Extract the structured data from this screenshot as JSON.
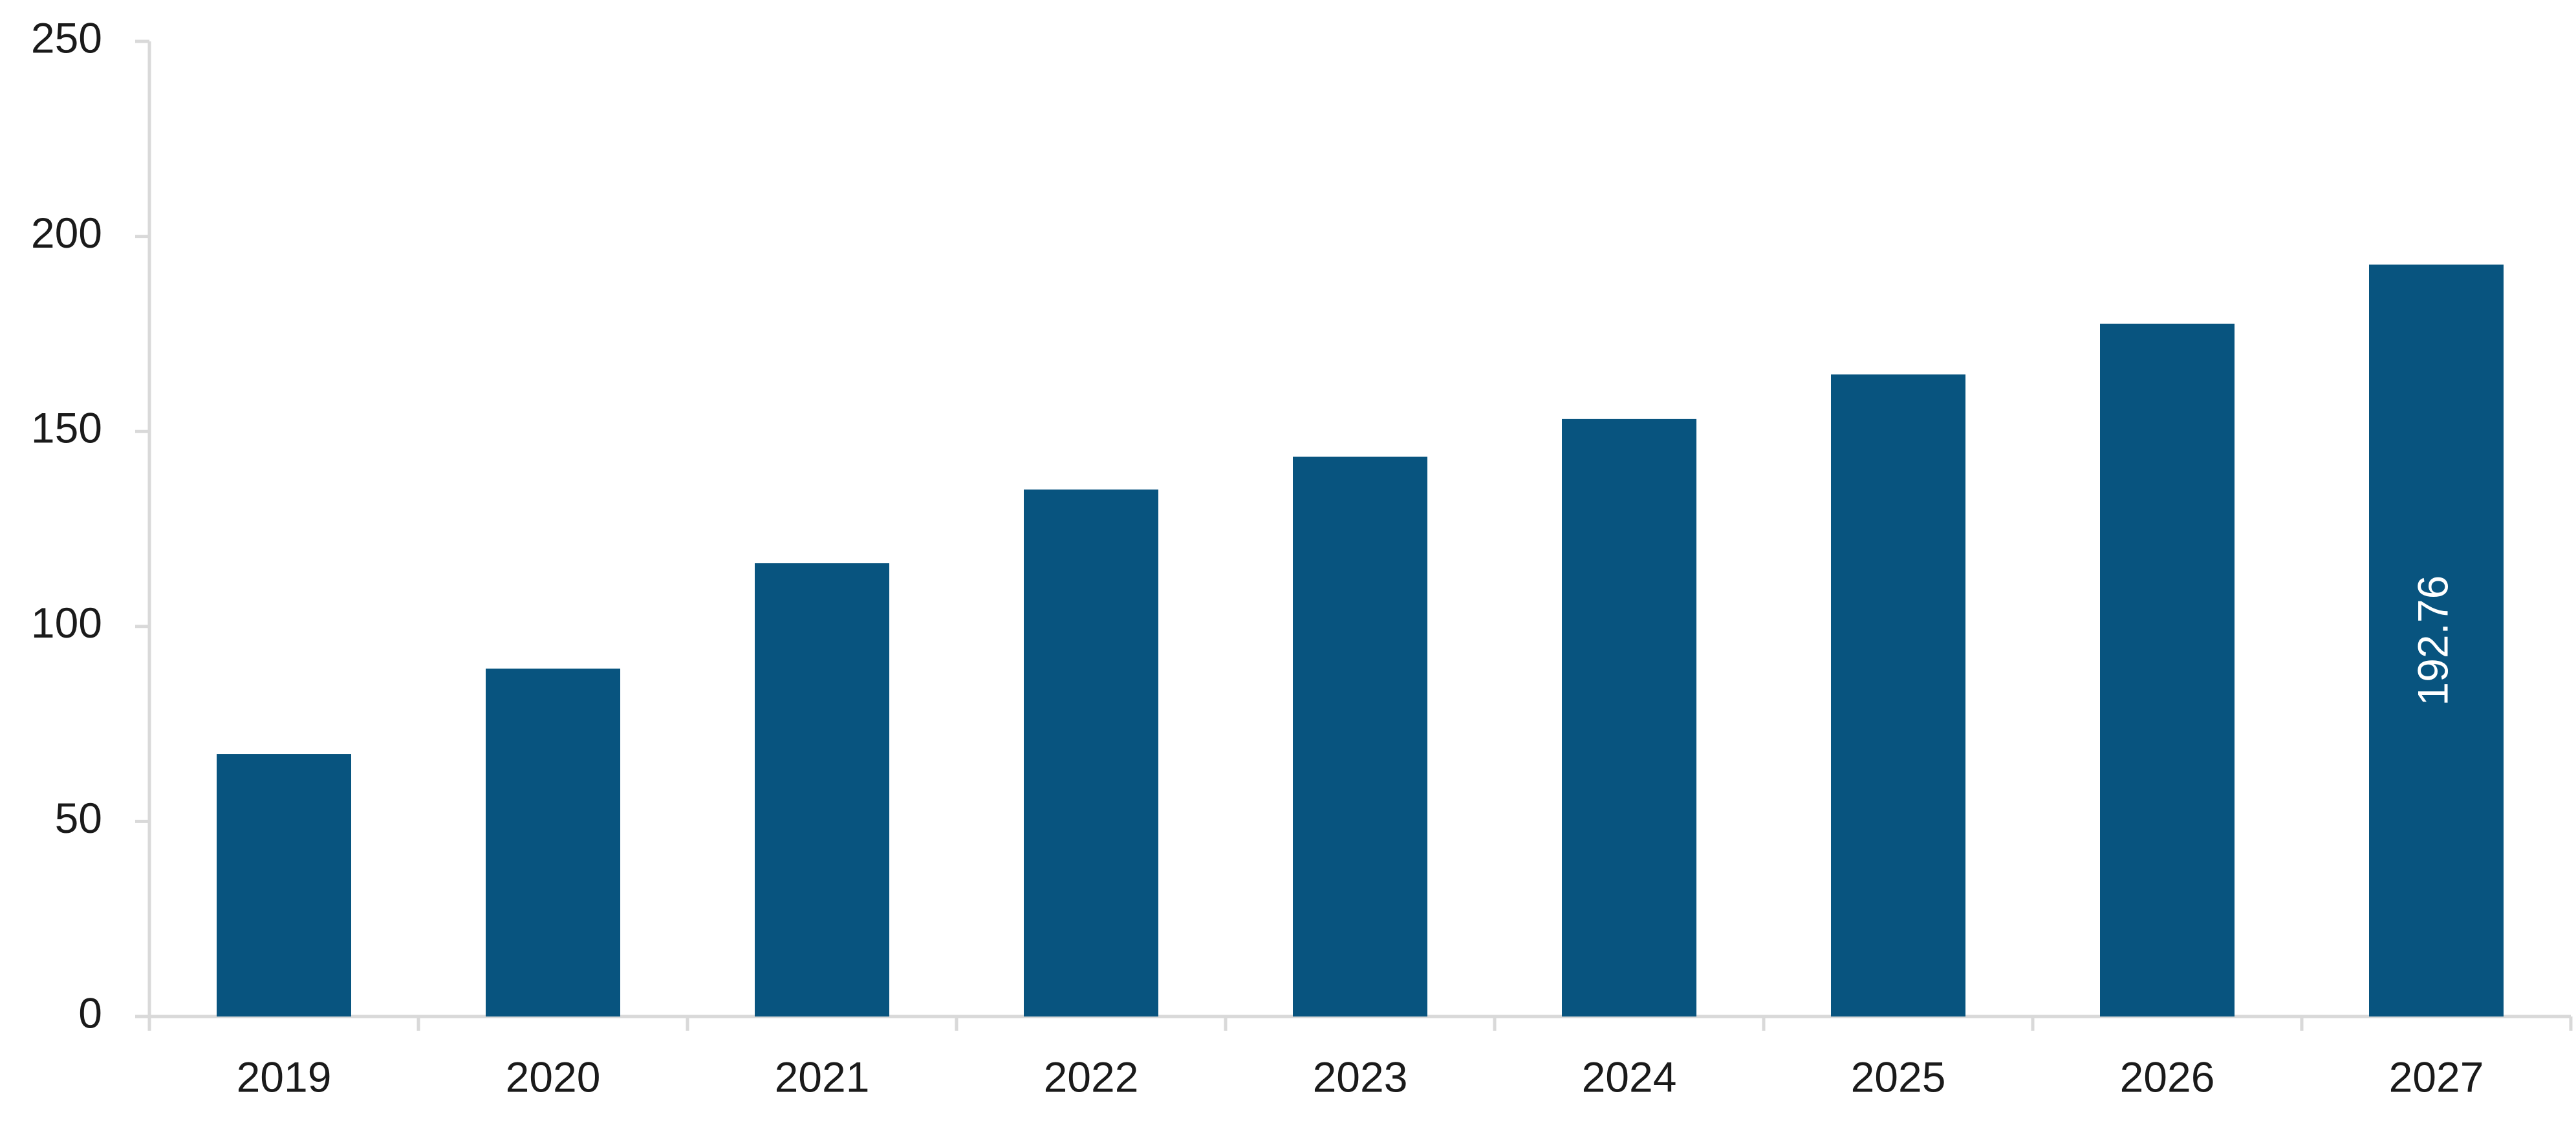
{
  "chart_data": {
    "type": "bar",
    "categories": [
      "2019",
      "2020",
      "2021",
      "2022",
      "2023",
      "2024",
      "2025",
      "2026",
      "2027"
    ],
    "values": [
      67.3,
      89.2,
      116.2,
      135.1,
      143.5,
      153.2,
      164.6,
      177.6,
      192.76
    ],
    "value_labels": [
      null,
      null,
      null,
      null,
      null,
      null,
      null,
      null,
      "192.76"
    ],
    "color": "#08547f",
    "ylim": [
      0,
      250
    ],
    "yticks": [
      0,
      50,
      100,
      150,
      200,
      250
    ],
    "grid": false
  }
}
